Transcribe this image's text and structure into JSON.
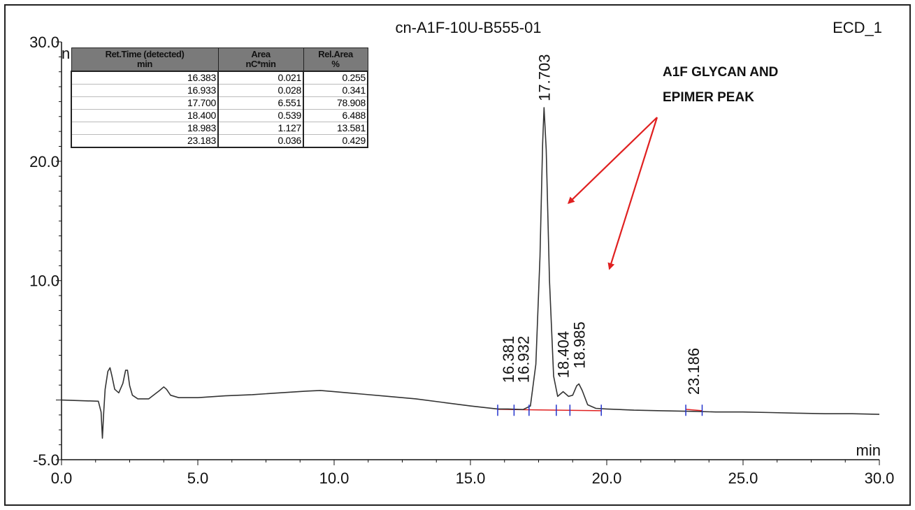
{
  "chart_data": {
    "type": "line",
    "title": "cn-A1F-10U-B555-01",
    "channel": "ECD_1",
    "xlabel": "min",
    "ylabel_fragment": "n",
    "xlim": [
      0.0,
      30.0
    ],
    "ylim": [
      -5.0,
      30.0
    ],
    "x_ticks": [
      "0.0",
      "5.0",
      "10.0",
      "15.0",
      "20.0",
      "25.0",
      "30.0"
    ],
    "y_ticks": [
      "30.0",
      "20.0",
      "10.0",
      "-5.0"
    ],
    "series": [
      {
        "x": [
          0,
          1.35,
          1.45,
          1.5,
          1.55,
          1.6,
          1.7,
          1.78,
          1.85,
          1.95,
          2.1,
          2.25,
          2.35,
          2.42,
          2.5,
          2.6,
          2.8,
          3.2,
          3.6,
          3.75,
          3.85,
          4.0,
          4.3,
          5.0,
          6.0,
          7.0,
          8.0,
          9.0,
          9.5,
          10.0,
          11.0,
          12.0,
          13.0,
          14.0,
          15.0,
          16.0,
          16.38,
          16.93,
          17.2,
          17.4,
          17.55,
          17.65,
          17.7,
          17.78,
          17.9,
          18.05,
          18.2,
          18.4,
          18.6,
          18.75,
          18.9,
          18.98,
          19.1,
          19.3,
          19.6,
          20.0,
          21.0,
          22.0,
          23.18,
          24.0,
          25.0,
          26.0,
          27.0,
          28.0,
          29.0,
          30.0
        ],
        "y": [
          0.0,
          -0.1,
          -1.0,
          -3.2,
          -1.0,
          0.9,
          2.4,
          2.7,
          2.0,
          0.9,
          0.6,
          1.4,
          2.5,
          2.5,
          1.2,
          0.4,
          0.1,
          0.1,
          0.8,
          1.1,
          0.9,
          0.4,
          0.2,
          0.2,
          0.35,
          0.45,
          0.6,
          0.75,
          0.8,
          0.7,
          0.5,
          0.3,
          0.1,
          -0.2,
          -0.5,
          -0.75,
          -0.75,
          -0.8,
          -0.5,
          3.0,
          12.0,
          21.5,
          24.5,
          21.0,
          10.0,
          2.0,
          0.3,
          0.7,
          0.3,
          0.4,
          1.2,
          1.35,
          0.8,
          -0.4,
          -0.7,
          -0.75,
          -0.85,
          -0.9,
          -0.95,
          -1.0,
          -1.0,
          -1.05,
          -1.1,
          -1.15,
          -1.15,
          -1.2
        ]
      }
    ],
    "peak_labels": [
      {
        "x": 16.383,
        "label": "16.381"
      },
      {
        "x": 16.933,
        "label": "16.932"
      },
      {
        "x": 17.7,
        "label": "17.703"
      },
      {
        "x": 18.4,
        "label": "18.404"
      },
      {
        "x": 18.983,
        "label": "18.985"
      },
      {
        "x": 23.183,
        "label": "23.186"
      }
    ],
    "baseline_segments": [
      [
        16.0,
        19.8
      ],
      [
        22.9,
        23.5
      ]
    ],
    "integration_marks": [
      16.0,
      16.6,
      17.15,
      18.15,
      18.65,
      19.8,
      22.9,
      23.5
    ],
    "table": {
      "headers": [
        "Ret.Time (detected)\nmin",
        "Area\nnC*min",
        "Rel.Area\n%"
      ],
      "rows": [
        [
          "16.383",
          "0.021",
          "0.255"
        ],
        [
          "16.933",
          "0.028",
          "0.341"
        ],
        [
          "17.700",
          "6.551",
          "78.908"
        ],
        [
          "18.400",
          "0.539",
          "6.488"
        ],
        [
          "18.983",
          "1.127",
          "13.581"
        ],
        [
          "23.183",
          "0.036",
          "0.429"
        ]
      ]
    },
    "annotation": {
      "text_line1": "A1F GLYCAN AND",
      "text_line2": "EPIMER PEAK",
      "arrow_targets": [
        [
          18.6,
          16.5
        ],
        [
          20.1,
          11.0
        ]
      ],
      "color": "#e02020"
    },
    "trace_color": "#333333",
    "baseline_color": "#e02020",
    "mark_color": "#2233cc"
  }
}
